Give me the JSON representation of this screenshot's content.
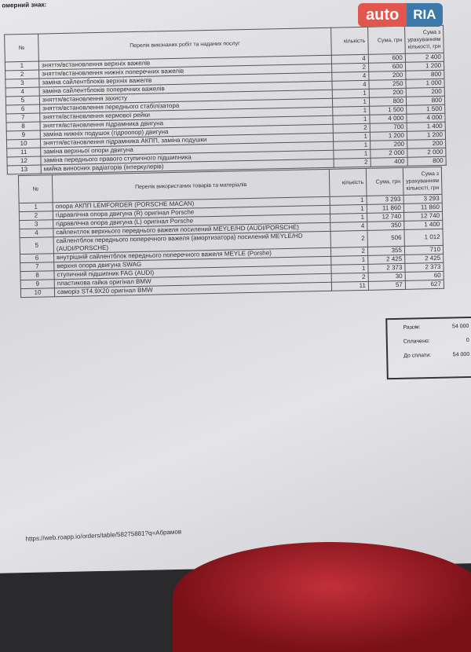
{
  "plate_label": "омерний знак:",
  "logo": {
    "text": "autoRIA",
    "part1": "auto",
    "part2": "RIA",
    "colors": {
      "auto": "#e2564e",
      "ria": "#3b7aa8"
    }
  },
  "works": {
    "headers": [
      "№",
      "Перелік виконаних робіт та наданих послуг",
      "кількість",
      "Сума, грн",
      "Сума з урахуванням кількості, грн"
    ],
    "rows": [
      [
        "1",
        "зняття/встановлення верхніх важелів",
        "4",
        "600",
        "2 400"
      ],
      [
        "2",
        "зняття/встановлення нижніх поперечних важелів",
        "2",
        "600",
        "1 200"
      ],
      [
        "3",
        "заміна сайлентблоків верхніх важелів",
        "4",
        "200",
        "800"
      ],
      [
        "4",
        "заміна сайлентблоків поперечних важелів",
        "4",
        "250",
        "1 000"
      ],
      [
        "5",
        "зняття/встановлення захисту",
        "1",
        "200",
        "200"
      ],
      [
        "6",
        "зняття/встановлення переднього стабілізатора",
        "1",
        "800",
        "800"
      ],
      [
        "7",
        "зняття/встановлення кермової рейки",
        "1",
        "1 500",
        "1 500"
      ],
      [
        "8",
        "зняття/встановлення підрамника двигуна",
        "1",
        "4 000",
        "4 000"
      ],
      [
        "9",
        "заміна нижніх подушок (гідроопор) двигуна",
        "2",
        "700",
        "1 400"
      ],
      [
        "10",
        "зняття/встановлення підрамника АКПП, заміна подушки",
        "1",
        "1 200",
        "1 200"
      ],
      [
        "11",
        "заміна верхньої опори двигуна",
        "1",
        "200",
        "200"
      ],
      [
        "12",
        "заміна переднього правого ступичного підшипника",
        "1",
        "2 000",
        "2 000"
      ],
      [
        "13",
        "мийка виносних радіаторів (інтеркулерів)",
        "2",
        "400",
        "800"
      ]
    ]
  },
  "parts": {
    "headers": [
      "№",
      "Перелік використаних товарів та матеріалів",
      "кількість",
      "Сума, грн",
      "Сума з урахуванням кількості, грн"
    ],
    "rows": [
      [
        "1",
        "опора АКПП LEMFORDER (PORSCHE MACAN)",
        "1",
        "3 293",
        "3 293"
      ],
      [
        "2",
        "гідравлічна опора двигуна (R) оригінал Porsche",
        "1",
        "11 860",
        "11 860"
      ],
      [
        "3",
        "гідравлічна опора двигуна (L) оригінал Porsche",
        "1",
        "12 740",
        "12 740"
      ],
      [
        "4",
        "сайлентлок верхнього переднього важеля посилений MEYLE/HD (AUDI/PORSCHE)",
        "4",
        "350",
        "1 400"
      ],
      [
        "5",
        "сайлентблок переднього поперечного важеля (амортизатора) посилений MEYLE/HD (AUDI/PORSCHE)",
        "2",
        "506",
        "1 012"
      ],
      [
        "6",
        "внутрішній сайлентблок переднього поперечного важеля MEYLE (Porshe)",
        "2",
        "355",
        "710"
      ],
      [
        "7",
        "верхня опора двигуна SWAG",
        "1",
        "2 425",
        "2 425"
      ],
      [
        "8",
        "ступичний підшипник FAG (AUDI)",
        "1",
        "2 373",
        "2 373"
      ],
      [
        "9",
        "пластикова гайка оригінал BMW",
        "2",
        "30",
        "60"
      ],
      [
        "10",
        "саморіз ST4.9X20 оригінал BMW",
        "11",
        "57",
        "627"
      ]
    ]
  },
  "totals": {
    "sum_label": "Разом:",
    "sum": "54 000",
    "paid_label": "Сплачено:",
    "paid": "0",
    "due_label": "До сплати:",
    "due": "54 000"
  },
  "url": "https://web.roapp.io/orders/table/58275881?q=Абрамов"
}
